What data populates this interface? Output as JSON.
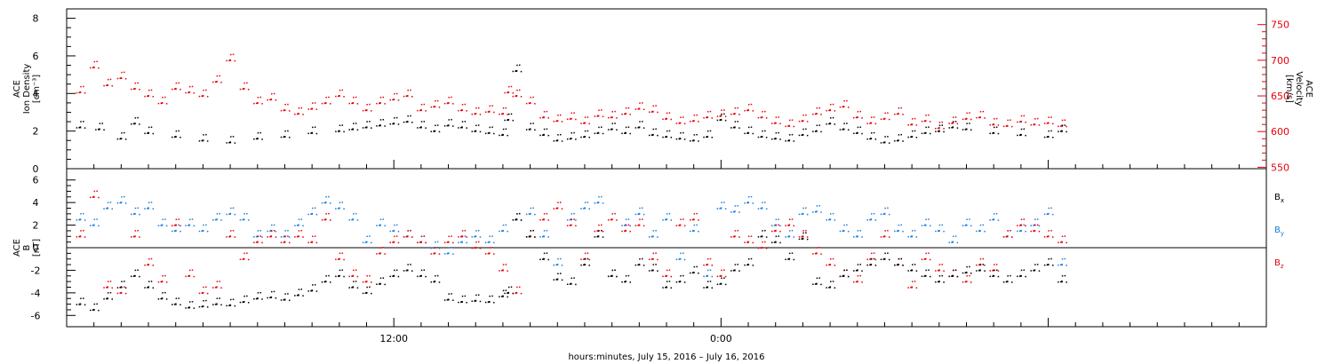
{
  "chart_data": [
    {
      "type": "scatter",
      "panel": "ion-density-velocity",
      "ylabel_left": [
        "ACE",
        "Ion Density",
        "[cm⁻³]"
      ],
      "ylabel_right": [
        "ACE",
        "Velocity",
        "[km/s]"
      ],
      "ylim_left": [
        0,
        8.5
      ],
      "yticks_left": [
        0,
        2,
        4,
        6,
        8
      ],
      "ylim_right": [
        548,
        772
      ],
      "yticks_right": [
        550,
        600,
        650,
        700,
        750
      ],
      "series": [
        {
          "name": "Ion Density",
          "axis": "left",
          "color": "#000000",
          "x": [
            0.5,
            1.2,
            2.0,
            2.5,
            3.0,
            4.0,
            5.0,
            6.0,
            7.0,
            8.0,
            9.0,
            10.0,
            10.5,
            11.0,
            11.5,
            12.0,
            12.5,
            13.0,
            13.5,
            14.0,
            14.5,
            15.0,
            15.5,
            16.0,
            16.2,
            16.5,
            17.0,
            17.5,
            18.0,
            18.5,
            19.0,
            19.5,
            20.0,
            20.5,
            21.0,
            21.5,
            22.0,
            22.5,
            23.0,
            23.5,
            24.0,
            24.5,
            25.0,
            25.5,
            26.0,
            26.5,
            27.0,
            27.5,
            28.0,
            28.5,
            29.0,
            29.5,
            30.0,
            30.5,
            31.0,
            31.5,
            32.0,
            32.5,
            33.0,
            34.0,
            35.0,
            36.0,
            36.5
          ],
          "y": [
            2.2,
            2.1,
            1.6,
            2.4,
            1.9,
            1.7,
            1.5,
            1.4,
            1.6,
            1.7,
            1.9,
            2.0,
            2.1,
            2.2,
            2.3,
            2.4,
            2.5,
            2.2,
            2.0,
            2.3,
            2.2,
            2.0,
            1.9,
            1.8,
            2.6,
            5.2,
            2.1,
            1.8,
            1.5,
            1.6,
            1.7,
            1.9,
            2.1,
            1.9,
            2.2,
            1.8,
            1.7,
            1.6,
            1.5,
            1.7,
            2.6,
            2.2,
            1.9,
            1.7,
            1.6,
            1.5,
            1.8,
            2.0,
            2.4,
            2.1,
            1.9,
            1.6,
            1.4,
            1.5,
            1.7,
            1.9,
            2.0,
            2.2,
            2.1,
            1.9,
            1.8,
            1.7,
            2.0
          ]
        },
        {
          "name": "Velocity",
          "axis": "right",
          "color": "#e8000b",
          "x": [
            0.5,
            1.0,
            1.5,
            2.0,
            2.5,
            3.0,
            3.5,
            4.0,
            4.5,
            5.0,
            5.5,
            6.0,
            6.5,
            7.0,
            7.5,
            8.0,
            8.5,
            9.0,
            9.5,
            10.0,
            10.5,
            11.0,
            11.5,
            12.0,
            12.5,
            13.0,
            13.5,
            14.0,
            14.5,
            15.0,
            15.5,
            16.0,
            16.2,
            16.5,
            17.0,
            17.5,
            18.0,
            18.5,
            19.0,
            19.5,
            20.0,
            20.5,
            21.0,
            21.5,
            22.0,
            22.5,
            23.0,
            23.5,
            24.0,
            24.5,
            25.0,
            25.5,
            26.0,
            26.5,
            27.0,
            27.5,
            28.0,
            28.5,
            29.0,
            29.5,
            30.0,
            30.5,
            31.0,
            31.5,
            32.0,
            32.5,
            33.0,
            33.5,
            34.0,
            34.5,
            35.0,
            35.5,
            36.0,
            36.5
          ],
          "y": [
            655,
            690,
            665,
            675,
            660,
            650,
            640,
            660,
            655,
            650,
            670,
            700,
            660,
            640,
            645,
            630,
            625,
            632,
            640,
            650,
            640,
            630,
            640,
            645,
            650,
            630,
            635,
            640,
            630,
            625,
            628,
            625,
            655,
            650,
            640,
            620,
            615,
            618,
            612,
            622,
            620,
            625,
            632,
            628,
            618,
            612,
            615,
            620,
            622,
            625,
            630,
            620,
            612,
            608,
            615,
            625,
            630,
            635,
            620,
            612,
            618,
            625,
            610,
            615,
            605,
            612,
            618,
            620,
            610,
            608,
            614,
            610,
            612,
            608
          ]
        }
      ]
    },
    {
      "type": "scatter",
      "panel": "magnetic-field",
      "ylabel_left": [
        "ACE",
        "B",
        "[nT]"
      ],
      "ylim": [
        -7,
        7
      ],
      "yticks": [
        -6,
        -4,
        -2,
        0,
        2,
        4,
        6
      ],
      "zero_line": true,
      "legend": [
        "Bx",
        "By",
        "Bz"
      ],
      "series": [
        {
          "name": "Bx",
          "color": "#000000",
          "x": [
            0.5,
            1.0,
            1.5,
            2.0,
            2.5,
            3.0,
            3.5,
            4.0,
            4.5,
            5.0,
            5.5,
            6.0,
            6.5,
            7.0,
            7.5,
            8.0,
            8.5,
            9.0,
            9.5,
            10.0,
            10.5,
            11.0,
            11.5,
            12.0,
            12.5,
            13.0,
            13.5,
            14.0,
            14.5,
            15.0,
            15.5,
            16.0,
            16.2,
            16.5,
            17.0,
            17.5,
            18.0,
            18.5,
            19.0,
            19.5,
            20.0,
            20.5,
            21.0,
            21.5,
            22.0,
            22.5,
            23.0,
            23.5,
            24.0,
            24.5,
            25.0,
            25.5,
            26.0,
            26.5,
            27.0,
            27.5,
            28.0,
            28.5,
            29.0,
            29.5,
            30.0,
            30.5,
            31.0,
            31.5,
            32.0,
            32.5,
            33.0,
            33.5,
            34.0,
            34.5,
            35.0,
            35.5,
            36.0,
            36.5
          ],
          "y": [
            -5.0,
            -5.5,
            -4.5,
            -3.5,
            -2.5,
            -3.5,
            -4.5,
            -5.0,
            -5.3,
            -5.2,
            -5.0,
            -5.1,
            -4.8,
            -4.5,
            -4.4,
            -4.6,
            -4.2,
            -3.8,
            -3.0,
            -2.5,
            -3.5,
            -4.0,
            -3.2,
            -2.5,
            -2.0,
            -2.5,
            -3.0,
            -4.6,
            -4.8,
            -4.7,
            -4.8,
            -4.3,
            -4.0,
            2.5,
            1.0,
            -1.0,
            -2.8,
            -3.2,
            -1.5,
            1.0,
            -2.5,
            -3.0,
            -1.5,
            -2.0,
            -3.5,
            -3.0,
            -2.2,
            -3.5,
            -3.2,
            -2.0,
            -1.5,
            1.0,
            0.5,
            -1.0,
            0.8,
            -3.2,
            -3.5,
            -2.5,
            -2.0,
            -1.5,
            -1.0,
            -1.5,
            -2.0,
            -2.5,
            -3.0,
            -2.5,
            -2.2,
            -2.0,
            -2.5,
            -3.0,
            -2.5,
            -2.0,
            -1.5,
            -3.0
          ]
        },
        {
          "name": "By",
          "color": "#1a7ee0",
          "x": [
            0.5,
            1.0,
            1.5,
            2.0,
            2.5,
            3.0,
            3.5,
            4.0,
            4.5,
            5.0,
            5.5,
            6.0,
            6.5,
            7.0,
            7.5,
            8.0,
            8.5,
            9.0,
            9.5,
            10.0,
            10.5,
            11.0,
            11.5,
            12.0,
            12.5,
            13.0,
            13.5,
            14.0,
            14.5,
            15.0,
            15.5,
            16.0,
            16.5,
            17.0,
            17.5,
            18.0,
            18.5,
            19.0,
            19.5,
            20.0,
            20.5,
            21.0,
            21.5,
            22.0,
            22.5,
            23.0,
            23.5,
            24.0,
            24.5,
            25.0,
            25.5,
            26.0,
            26.5,
            27.0,
            27.5,
            28.0,
            28.5,
            29.0,
            29.5,
            30.0,
            30.5,
            31.0,
            31.5,
            32.0,
            32.5,
            33.0,
            33.5,
            34.0,
            34.5,
            35.0,
            35.5,
            36.0,
            36.5
          ],
          "y": [
            2.5,
            2.0,
            3.5,
            4.0,
            3.0,
            3.5,
            2.0,
            1.5,
            2.0,
            1.5,
            2.5,
            3.0,
            2.5,
            1.0,
            1.5,
            1.0,
            2.0,
            3.0,
            4.0,
            3.5,
            2.5,
            0.5,
            2.0,
            1.5,
            1.0,
            0.5,
            0.0,
            -0.5,
            0.5,
            1.0,
            0.5,
            1.5,
            2.5,
            3.0,
            1.0,
            -1.5,
            2.5,
            3.5,
            4.0,
            -2.5,
            2.0,
            3.0,
            1.0,
            2.5,
            -1.0,
            1.5,
            -2.5,
            3.5,
            3.2,
            4.0,
            3.5,
            2.0,
            1.0,
            3.0,
            3.2,
            2.5,
            1.5,
            1.0,
            2.5,
            3.0,
            1.5,
            1.0,
            2.0,
            1.5,
            0.5,
            2.0,
            1.5,
            2.5,
            1.0,
            1.5,
            2.0,
            3.0,
            -1.5
          ]
        },
        {
          "name": "Bz",
          "color": "#e8000b",
          "x": [
            0.5,
            1.0,
            1.5,
            2.0,
            2.5,
            3.0,
            3.5,
            4.0,
            4.5,
            5.0,
            5.5,
            6.0,
            6.5,
            7.0,
            7.5,
            8.0,
            8.5,
            9.0,
            9.5,
            10.0,
            10.5,
            11.0,
            11.5,
            12.0,
            12.5,
            13.0,
            13.5,
            14.0,
            14.5,
            15.0,
            15.5,
            16.0,
            16.5,
            17.0,
            17.5,
            18.0,
            18.5,
            19.0,
            19.5,
            20.0,
            20.5,
            21.0,
            21.5,
            22.0,
            22.5,
            23.0,
            23.5,
            24.0,
            24.5,
            25.0,
            25.5,
            26.0,
            26.5,
            27.0,
            27.5,
            28.0,
            28.5,
            29.0,
            29.5,
            30.0,
            30.5,
            31.0,
            31.5,
            32.0,
            32.5,
            33.0,
            33.5,
            34.0,
            34.5,
            35.0,
            35.5,
            36.0,
            36.5
          ],
          "y": [
            1.0,
            4.5,
            -3.5,
            -4.0,
            1.0,
            -1.5,
            -3.0,
            2.0,
            -2.5,
            -4.0,
            -3.5,
            1.0,
            -1.0,
            0.5,
            1.0,
            0.5,
            1.0,
            0.5,
            2.5,
            -1.0,
            -2.5,
            -3.0,
            -0.5,
            0.5,
            1.0,
            0.5,
            -0.5,
            0.5,
            1.0,
            0.0,
            -0.5,
            -2.0,
            -4.0,
            1.0,
            2.5,
            3.5,
            2.0,
            -1.0,
            1.5,
            2.5,
            1.5,
            2.0,
            -1.0,
            -2.5,
            2.0,
            2.5,
            -1.5,
            -2.5,
            1.0,
            0.5,
            0.0,
            1.5,
            2.0,
            1.0,
            -0.5,
            -1.5,
            -2.5,
            -3.0,
            -1.0,
            1.0,
            -1.5,
            -3.5,
            -1.0,
            -2.0,
            -2.5,
            -3.0,
            -1.5,
            -2.0,
            1.0,
            2.0,
            1.5,
            1.0,
            0.5
          ]
        }
      ]
    }
  ],
  "x_axis": {
    "xlim": [
      0,
      44
    ],
    "tick_labels": [
      {
        "x": 12,
        "label": "12:00"
      },
      {
        "x": 24,
        "label": "0:00"
      }
    ],
    "xlabel": "hours:minutes, July 15, 2016 – July 16, 2016"
  },
  "legend_labels": {
    "bx": "B",
    "bx_sub": "x",
    "by": "B",
    "by_sub": "y",
    "bz": "B",
    "bz_sub": "z"
  },
  "colors": {
    "black": "#000000",
    "red": "#e8000b",
    "blue": "#1a7ee0"
  }
}
